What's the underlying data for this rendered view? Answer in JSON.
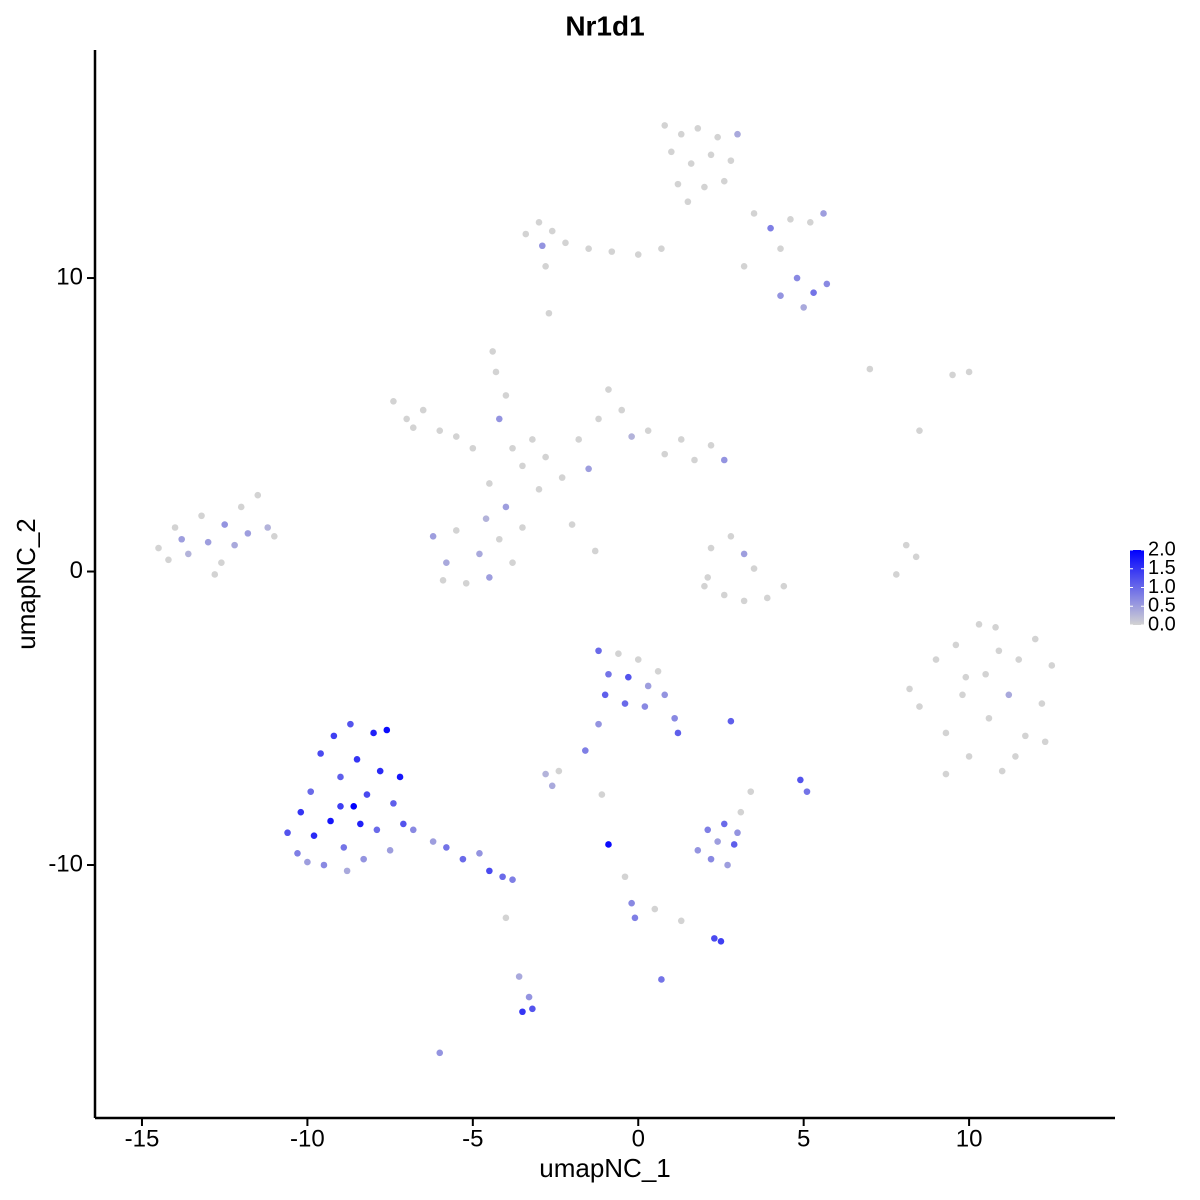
{
  "chart_data": {
    "type": "scatter",
    "title": "Nr1d1",
    "x_label": "umapNC_1",
    "y_label": "umapNC_2",
    "xlim": [
      -16.42,
      14.41
    ],
    "ylim": [
      -18.62,
      17.77
    ],
    "xticks": [
      -15,
      -10,
      -5,
      0,
      5,
      10
    ],
    "yticks": [
      -10,
      0,
      10
    ],
    "grid": false,
    "low_color": "#d3d3d3",
    "high_color": "#0000ff",
    "color_lim": [
      0,
      2
    ],
    "color_ticks": [
      {
        "value": 0,
        "label": "0.0"
      },
      {
        "value": 0.5,
        "label": "0.5"
      },
      {
        "value": 1,
        "label": "1.0"
      },
      {
        "value": 1.5,
        "label": "1.5"
      },
      {
        "value": 2,
        "label": "2.0"
      }
    ],
    "x": [
      -14.5,
      -14.0,
      -13.6,
      -13.2,
      -13.0,
      -12.6,
      -12.5,
      -12.2,
      -12.0,
      -11.8,
      -11.5,
      -11.2,
      -13.8,
      -12.8,
      -11.0,
      -14.2,
      -7.4,
      -7.0,
      -6.5,
      -6.0,
      -5.5,
      -6.8,
      -5.0,
      -4.4,
      -4.3,
      -4.0,
      -4.2,
      -3.8,
      -3.2,
      -3.5,
      -2.8,
      -3.0,
      -2.3,
      -4.5,
      -4.0,
      -6.2,
      -5.8,
      -5.5,
      -5.2,
      -4.8,
      -4.5,
      -4.2,
      -3.8,
      -3.5,
      -5.9,
      -4.6,
      -1.8,
      -1.2,
      -0.9,
      -0.5,
      -0.2,
      0.3,
      0.8,
      1.3,
      1.7,
      2.2,
      2.6,
      -1.5,
      -2.0,
      -1.3,
      0.8,
      1.3,
      1.8,
      2.4,
      1.0,
      1.6,
      2.2,
      2.8,
      1.2,
      2.0,
      2.6,
      3.0,
      1.5,
      -3.4,
      -3.0,
      -2.6,
      -2.9,
      -2.2,
      -1.5,
      -0.8,
      0,
      0.7,
      -2.8,
      -2.7,
      3.5,
      4.0,
      4.6,
      5.2,
      5.6,
      4.3,
      4.8,
      5.3,
      5.7,
      4.3,
      5.0,
      3.2,
      2.2,
      2.8,
      3.2,
      3.5,
      2.1,
      2.6,
      3.2,
      3.9,
      4.4,
      2.0,
      7.0,
      8.5,
      8.4,
      7.8,
      8.1,
      9.5,
      10.0,
      8.2,
      8.5,
      9.0,
      9.3,
      9.6,
      9.8,
      10.0,
      10.3,
      10.5,
      10.6,
      10.9,
      11.0,
      11.2,
      11.5,
      11.7,
      12.0,
      12.2,
      12.5,
      12.3,
      9.3,
      10.8,
      11.4,
      9.9,
      -10.6,
      -10.3,
      -10.2,
      -9.9,
      -9.8,
      -9.6,
      -9.5,
      -9.3,
      -9.2,
      -9.0,
      -8.9,
      -8.7,
      -8.6,
      -8.5,
      -8.3,
      -8.2,
      -8.0,
      -7.9,
      -7.8,
      -7.6,
      -7.5,
      -7.4,
      -7.2,
      -7.1,
      -8.8,
      -10.0,
      -6.8,
      -6.2,
      -5.8,
      -5.3,
      -4.8,
      -4.5,
      -4.1,
      -3.8,
      -9.0,
      -8.4,
      -1.2,
      -0.9,
      -0.6,
      -0.3,
      0,
      0.3,
      0.6,
      -1.0,
      -0.4,
      0.2,
      0.8,
      1.1,
      1.2,
      -1.2,
      -1.6,
      2.8,
      -2.8,
      -2.4,
      -2.6,
      -1.1,
      -0.9,
      -0.4,
      -0.2,
      -0.1,
      0.5,
      1.3,
      2.3,
      2.5,
      0.7,
      -3.3,
      -3.5,
      -3.2,
      -3.6,
      -6.0,
      -4.0,
      4.9,
      5.1,
      3.4,
      1.8,
      2.1,
      2.4,
      2.6,
      2.9,
      3.0,
      2.2,
      2.7,
      3.1
    ],
    "y": [
      0.8,
      1.5,
      0.6,
      1.9,
      1.0,
      0.3,
      1.6,
      0.9,
      2.2,
      1.3,
      2.6,
      1.5,
      1.1,
      -0.1,
      1.2,
      0.4,
      5.8,
      5.2,
      5.5,
      4.8,
      4.6,
      4.9,
      4.2,
      7.5,
      6.8,
      6.0,
      5.2,
      4.2,
      4.5,
      3.6,
      3.9,
      2.8,
      3.2,
      3.0,
      2.2,
      1.2,
      0.3,
      1.4,
      -0.4,
      0.6,
      -0.2,
      1.1,
      0.3,
      1.5,
      -0.3,
      1.8,
      4.5,
      5.2,
      6.2,
      5.5,
      4.6,
      4.8,
      4.0,
      4.5,
      3.8,
      4.3,
      3.8,
      3.5,
      1.6,
      0.7,
      15.2,
      14.9,
      15.1,
      14.8,
      14.3,
      13.9,
      14.2,
      14.0,
      13.2,
      13.1,
      13.3,
      14.9,
      12.6,
      11.5,
      11.9,
      11.6,
      11.1,
      11.2,
      11.0,
      10.9,
      10.8,
      11.0,
      10.4,
      8.8,
      12.2,
      11.7,
      12.0,
      11.9,
      12.2,
      11.0,
      10.0,
      9.5,
      9.8,
      9.4,
      9.0,
      10.4,
      0.8,
      1.2,
      0.6,
      0.1,
      -0.2,
      -0.8,
      -1.0,
      -0.9,
      -0.5,
      -0.5,
      6.9,
      4.8,
      0.5,
      -0.1,
      0.9,
      6.7,
      6.8,
      -4.0,
      -4.6,
      -3.0,
      -5.5,
      -2.5,
      -4.2,
      -6.3,
      -1.8,
      -3.5,
      -5.0,
      -2.7,
      -6.8,
      -4.2,
      -3.0,
      -5.6,
      -2.3,
      -4.5,
      -3.2,
      -5.8,
      -6.9,
      -1.9,
      -6.3,
      -3.6,
      -8.9,
      -9.6,
      -8.2,
      -7.5,
      -9.0,
      -6.2,
      -10.0,
      -8.5,
      -5.6,
      -7.0,
      -9.4,
      -5.2,
      -8.0,
      -6.4,
      -9.8,
      -7.6,
      -5.5,
      -8.8,
      -6.8,
      -5.4,
      -9.5,
      -7.9,
      -7.0,
      -8.6,
      -10.2,
      -9.9,
      -8.8,
      -9.2,
      -9.4,
      -9.8,
      -9.6,
      -10.2,
      -10.4,
      -10.5,
      -8.0,
      -8.6,
      -2.7,
      -3.5,
      -2.8,
      -3.6,
      -3.0,
      -3.9,
      -3.4,
      -4.2,
      -4.5,
      -4.6,
      -4.2,
      -5.0,
      -5.5,
      -5.2,
      -6.1,
      -5.1,
      -6.9,
      -6.8,
      -7.3,
      -7.6,
      -9.3,
      -10.4,
      -11.3,
      -11.8,
      -11.5,
      -11.9,
      -12.5,
      -12.6,
      -13.9,
      -14.5,
      -15.0,
      -14.9,
      -13.8,
      -16.4,
      -11.8,
      -7.1,
      -7.5,
      -7.5,
      -9.5,
      -8.8,
      -9.2,
      -8.6,
      -9.3,
      -8.9,
      -9.8,
      -10.0,
      -8.2
    ],
    "expression": [
      0,
      0,
      0.3,
      0,
      0.5,
      0,
      0.6,
      0.4,
      0,
      0.5,
      0,
      0.3,
      0.5,
      0,
      0,
      0,
      0,
      0,
      0,
      0,
      0,
      0,
      0,
      0,
      0,
      0,
      0.6,
      0,
      0,
      0,
      0,
      0,
      0,
      0,
      0.5,
      0.5,
      0.4,
      0,
      0,
      0.4,
      0.5,
      0,
      0,
      0,
      0,
      0.3,
      0,
      0,
      0,
      0,
      0.3,
      0,
      0,
      0,
      0,
      0,
      0.6,
      0.5,
      0,
      0,
      0,
      0,
      0,
      0,
      0,
      0,
      0,
      0,
      0,
      0,
      0,
      0.4,
      0,
      0,
      0,
      0,
      0.6,
      0,
      0,
      0,
      0,
      0,
      0,
      0,
      0,
      0.8,
      0,
      0,
      0.5,
      0,
      0.7,
      0.9,
      0.7,
      0.6,
      0.4,
      0,
      0,
      0,
      0.5,
      0,
      0,
      0,
      0,
      0,
      0,
      0,
      0,
      0,
      0,
      0,
      0,
      0,
      0,
      0,
      0,
      0,
      0,
      0,
      0,
      0,
      0,
      0,
      0,
      0,
      0,
      0.4,
      0,
      0,
      0,
      0,
      0,
      0,
      0,
      0,
      0,
      0,
      1.2,
      0.8,
      1.5,
      1.0,
      1.6,
      1.3,
      0.7,
      1.8,
      1.4,
      1.1,
      0.9,
      1.2,
      2.0,
      1.5,
      0.6,
      1.3,
      1.7,
      1.0,
      1.6,
      1.9,
      0.5,
      1.1,
      1.8,
      1.2,
      0.4,
      0.5,
      0.7,
      0.5,
      0.9,
      1.0,
      0.6,
      1.3,
      1.0,
      0.8,
      1.4,
      1.7,
      1.0,
      0.9,
      0,
      1.2,
      0,
      0.5,
      0,
      1.1,
      1.0,
      0.7,
      0.6,
      0.7,
      1.1,
      0.6,
      0.8,
      1.1,
      0.3,
      0,
      0.4,
      0,
      1.9,
      0,
      0.7,
      0.8,
      0,
      0,
      1.3,
      1.4,
      0.9,
      0.6,
      1.5,
      1.2,
      0.4,
      0.6,
      0,
      1.2,
      0.9,
      0,
      0.6,
      0.8,
      0.5,
      1.0,
      1.1,
      0.6,
      0.7,
      0.5,
      0
    ]
  }
}
